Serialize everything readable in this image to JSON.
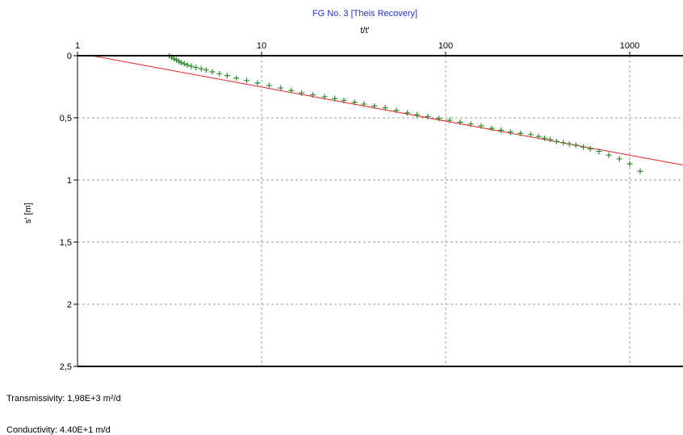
{
  "chart_data": {
    "type": "scatter",
    "title": "FG No. 3 [Theis Recovery]",
    "xlabel": "t/t'",
    "ylabel": "s' [m]",
    "x_scale": "log",
    "xlim": [
      1,
      2000
    ],
    "ylim": [
      0,
      2.5
    ],
    "y_inverted": true,
    "x_tick_labels": [
      "1",
      "10",
      "100",
      "1000"
    ],
    "x_tick_values": [
      1,
      10,
      100,
      1000
    ],
    "y_tick_labels": [
      "0",
      "0,5",
      "1",
      "1,5",
      "2",
      "2,5"
    ],
    "y_tick_values": [
      0,
      0.5,
      1,
      1.5,
      2,
      2.5
    ],
    "grid": true,
    "fit_line": {
      "x": [
        1.2,
        2000
      ],
      "y": [
        0.0,
        0.88
      ]
    },
    "series": [
      {
        "x": [
          3.15,
          3.25,
          3.35,
          3.45,
          3.55,
          3.65,
          3.8,
          3.95,
          4.15,
          4.4,
          4.7,
          5.0,
          5.4,
          5.9,
          6.5,
          7.3,
          8.3,
          9.5,
          11,
          12.7,
          14.5,
          16.5,
          19,
          22,
          25,
          28,
          32,
          36,
          41,
          47,
          54,
          62,
          70,
          80,
          92,
          105,
          120,
          137,
          156,
          178,
          200,
          225,
          255,
          290,
          320,
          345,
          370,
          400,
          435,
          470,
          510,
          560,
          610,
          680,
          770,
          880,
          1000,
          1140
        ],
        "y": [
          0.0,
          0.015,
          0.025,
          0.035,
          0.045,
          0.055,
          0.065,
          0.075,
          0.085,
          0.095,
          0.105,
          0.115,
          0.13,
          0.145,
          0.16,
          0.18,
          0.2,
          0.22,
          0.24,
          0.26,
          0.28,
          0.3,
          0.315,
          0.33,
          0.345,
          0.36,
          0.375,
          0.39,
          0.405,
          0.42,
          0.44,
          0.46,
          0.475,
          0.49,
          0.505,
          0.52,
          0.535,
          0.55,
          0.565,
          0.585,
          0.6,
          0.615,
          0.625,
          0.635,
          0.65,
          0.665,
          0.675,
          0.69,
          0.7,
          0.71,
          0.72,
          0.735,
          0.75,
          0.77,
          0.8,
          0.83,
          0.87,
          0.93
        ]
      }
    ]
  },
  "parameters": {
    "transmissivity": "Transmissivity: 1,98E+3 m²/d",
    "conductivity": "Conductivity: 4.40E+1 m/d"
  },
  "colors": {
    "title": "#2233cc",
    "fit_line": "#e82020",
    "markers": "#2e8b2e",
    "grid": "#9a9a9a",
    "frame": "#000000"
  }
}
